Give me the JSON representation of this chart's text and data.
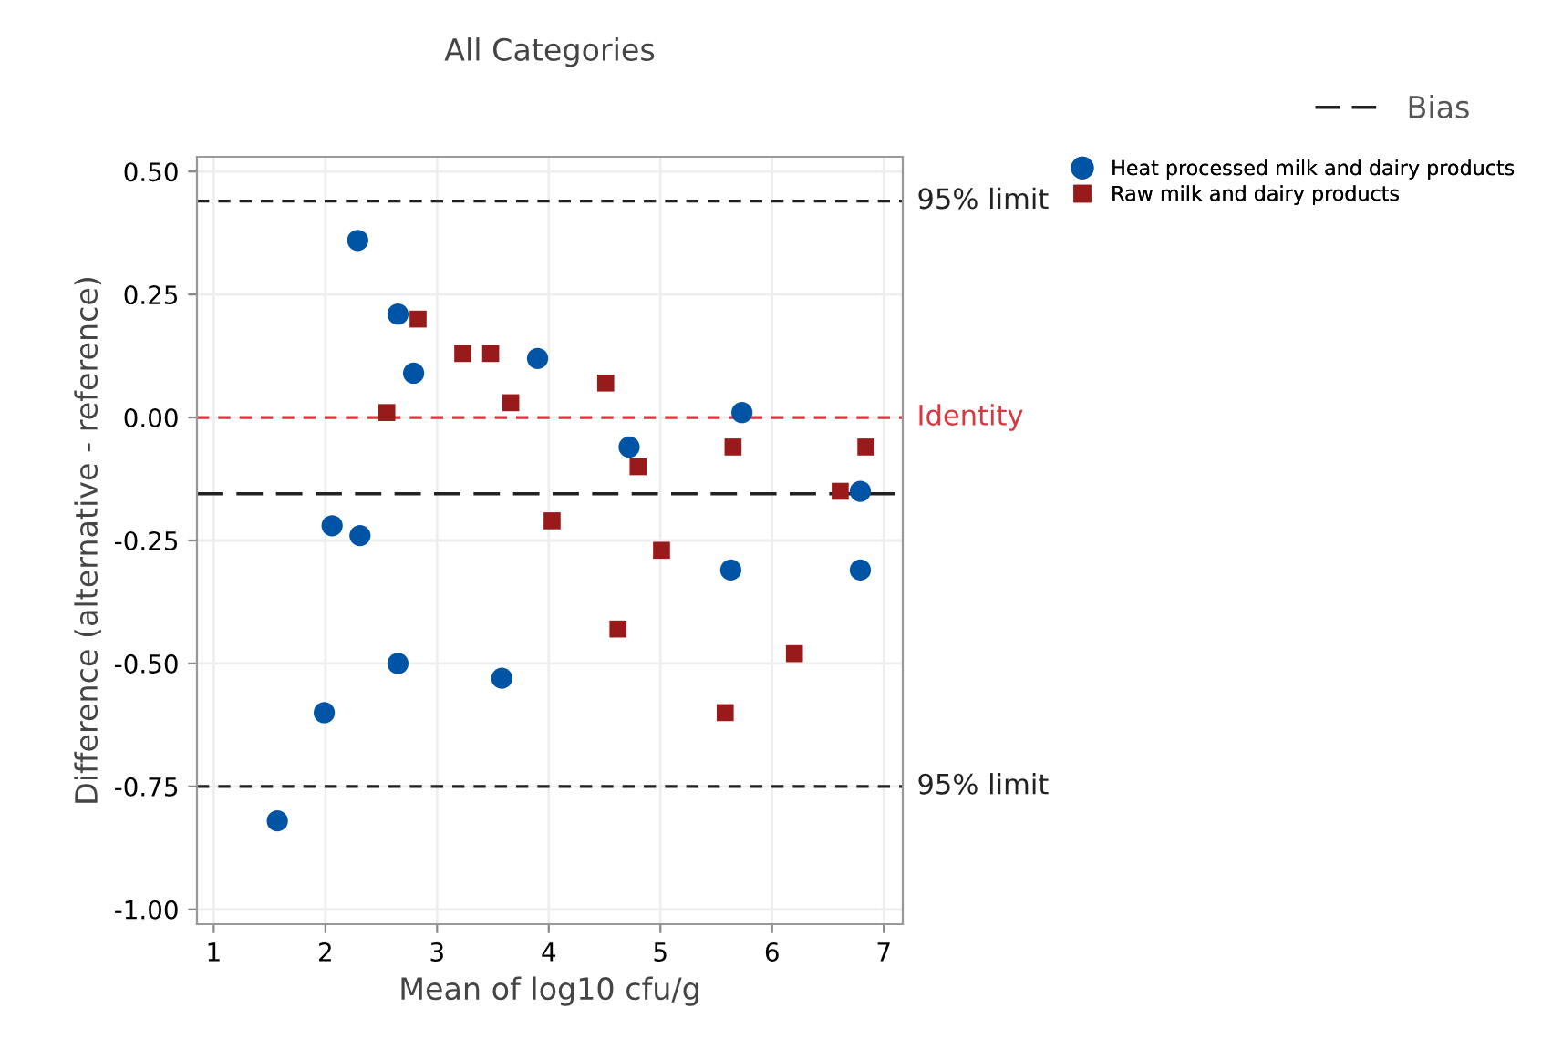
{
  "chart_data": {
    "type": "scatter",
    "title": "All Categories",
    "xlabel": "Mean of log10 cfu/g",
    "ylabel": "Difference (alternative - reference)",
    "xlim": [
      0.85,
      7.17
    ],
    "ylim": [
      -1.03,
      0.53
    ],
    "xticks": [
      1,
      2,
      3,
      4,
      5,
      6,
      7
    ],
    "yticks": [
      {
        "value": 0.5,
        "label": "0.50"
      },
      {
        "value": 0.25,
        "label": "0.25"
      },
      {
        "value": 0,
        "label": "0.00"
      },
      {
        "value": -0.25,
        "label": "-0.25"
      },
      {
        "value": -0.5,
        "label": "-0.50"
      },
      {
        "value": -0.75,
        "label": "-0.75"
      },
      {
        "value": -1,
        "label": "-1.00"
      }
    ],
    "grid": true,
    "legend": "top right",
    "series": [
      {
        "name": "Heat processed milk and dairy products",
        "color": "#0054a6",
        "marker": "circle",
        "x": [
          2.29,
          2.65,
          2.79,
          3.9,
          4.72,
          5.73,
          6.79,
          2.06,
          2.31,
          2.65,
          3.58,
          1.99,
          1.57,
          5.63,
          6.79
        ],
        "values": [
          0.36,
          0.21,
          0.09,
          0.12,
          -0.06,
          0.01,
          -0.15,
          -0.22,
          -0.24,
          -0.5,
          -0.53,
          -0.6,
          -0.82,
          -0.31,
          -0.31
        ]
      },
      {
        "name": "Raw milk and dairy products",
        "color": "#981a1a",
        "marker": "square",
        "x": [
          2.83,
          2.55,
          3.23,
          3.48,
          3.66,
          4.51,
          4.8,
          5.65,
          6.84,
          6.61,
          4.03,
          5.01,
          4.62,
          6.2,
          5.58
        ],
        "values": [
          0.2,
          0.01,
          0.13,
          0.13,
          0.03,
          0.07,
          -0.1,
          -0.06,
          -0.06,
          -0.15,
          -0.21,
          -0.27,
          -0.43,
          -0.48,
          -0.6
        ]
      }
    ],
    "ref_lines": [
      {
        "axis": "y",
        "value": 0.44,
        "label": "95% limit",
        "color": "#222222",
        "line_style": "dashed"
      },
      {
        "axis": "y",
        "value": 0,
        "label": "Identity",
        "color": "#d9363e",
        "line_style": "dashed"
      },
      {
        "axis": "y",
        "value": -0.155,
        "label": "Bias",
        "color": "#222222",
        "line_style": "longdash"
      },
      {
        "axis": "y",
        "value": -0.75,
        "label": "95% limit",
        "color": "#222222",
        "line_style": "dashed"
      }
    ]
  }
}
